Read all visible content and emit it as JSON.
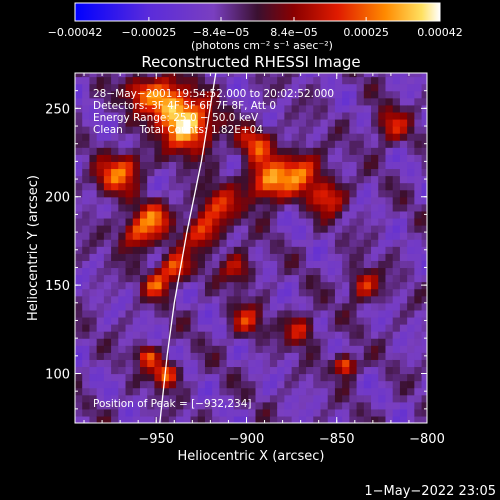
{
  "chart_data": {
    "type": "heatmap",
    "title": "Reconstructed RHESSI Image",
    "xlabel": "Heliocentric X (arcsec)",
    "ylabel": "Heliocentric Y (arcsec)",
    "xlim": [
      -995,
      -800
    ],
    "ylim": [
      72,
      270
    ],
    "xticks": [
      -950,
      -900,
      -850,
      -800
    ],
    "xtick_labels": [
      "−950",
      "−900",
      "−850",
      "−800"
    ],
    "yticks": [
      100,
      150,
      200,
      250
    ],
    "ytick_labels": [
      "100",
      "150",
      "200",
      "250"
    ],
    "colorbar": {
      "range": [
        -0.00042,
        0.00042
      ],
      "tick_values": [
        -0.00042,
        -0.00025,
        -8.4e-05,
        8.4e-05,
        0.00025,
        0.00042
      ],
      "tick_labels": [
        "−0.00042",
        "−0.00025",
        "−8.4e−05",
        "8.4e−05",
        "0.00025",
        "0.00042"
      ],
      "unit_label": "(photons cm⁻² s⁻¹ asec⁻²)"
    },
    "annotations": [
      "28−May−2001 19:54:52.000 to 20:02:52.000",
      "Detectors: 3F 4F 5F 6F 7F 8F, Att 0",
      "Energy Range: 25.0 − 50.0 keV",
      "Clean     Total Counts: 1.82E+04"
    ],
    "peak_label": "Position of Peak = [−932,234]",
    "peak": {
      "x": -932,
      "y": 234
    },
    "hot_spots": [
      {
        "x": -932,
        "y": 240,
        "amp": 1.0,
        "s": 10
      },
      {
        "x": -945,
        "y": 255,
        "amp": 0.8,
        "s": 9
      },
      {
        "x": -975,
        "y": 210,
        "amp": 0.6,
        "s": 7
      },
      {
        "x": -965,
        "y": 218,
        "amp": 0.55,
        "s": 6
      },
      {
        "x": -960,
        "y": 180,
        "amp": 0.75,
        "s": 7
      },
      {
        "x": -950,
        "y": 190,
        "amp": 0.55,
        "s": 6
      },
      {
        "x": -925,
        "y": 180,
        "amp": 0.6,
        "s": 7
      },
      {
        "x": -915,
        "y": 195,
        "amp": 0.55,
        "s": 8
      },
      {
        "x": -940,
        "y": 160,
        "amp": 0.75,
        "s": 6
      },
      {
        "x": -950,
        "y": 150,
        "amp": 0.6,
        "s": 5
      },
      {
        "x": -945,
        "y": 100,
        "amp": 0.8,
        "s": 5
      },
      {
        "x": -955,
        "y": 110,
        "amp": 0.7,
        "s": 4
      },
      {
        "x": -888,
        "y": 208,
        "amp": 0.85,
        "s": 8
      },
      {
        "x": -870,
        "y": 215,
        "amp": 0.7,
        "s": 8
      },
      {
        "x": -895,
        "y": 230,
        "amp": 0.6,
        "s": 7
      },
      {
        "x": -855,
        "y": 200,
        "amp": 0.6,
        "s": 7
      },
      {
        "x": -900,
        "y": 130,
        "amp": 0.55,
        "s": 6
      },
      {
        "x": -870,
        "y": 125,
        "amp": 0.55,
        "s": 6
      },
      {
        "x": -845,
        "y": 105,
        "amp": 0.9,
        "s": 4
      },
      {
        "x": -835,
        "y": 150,
        "amp": 0.6,
        "s": 6
      },
      {
        "x": -905,
        "y": 160,
        "amp": 0.5,
        "s": 6
      },
      {
        "x": -820,
        "y": 240,
        "amp": 0.5,
        "s": 7
      },
      {
        "x": -960,
        "y": 260,
        "amp": 0.5,
        "s": 6
      }
    ],
    "limb_curve": [
      {
        "x": -917,
        "y": 270
      },
      {
        "x": -925,
        "y": 220
      },
      {
        "x": -933,
        "y": 180
      },
      {
        "x": -940,
        "y": 140
      },
      {
        "x": -944,
        "y": 110
      },
      {
        "x": -948,
        "y": 72
      }
    ]
  },
  "timestamp": "1−May−2022 23:05"
}
